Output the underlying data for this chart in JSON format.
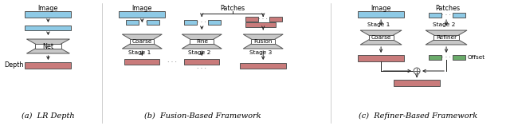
{
  "fig_width": 6.4,
  "fig_height": 1.58,
  "dpi": 100,
  "background": "#ffffff",
  "blue": "#8ecae6",
  "red": "#c97b7b",
  "green": "#6aab6a",
  "gray": "#c8c8c8",
  "white": "#ffffff",
  "edge": "#555555",
  "arr": "#222222",
  "caption_a": "(a)  LR Depth",
  "caption_b": "(b)  Fusion-Based Framework",
  "caption_c": "(c)  Refiner-Based Framework"
}
